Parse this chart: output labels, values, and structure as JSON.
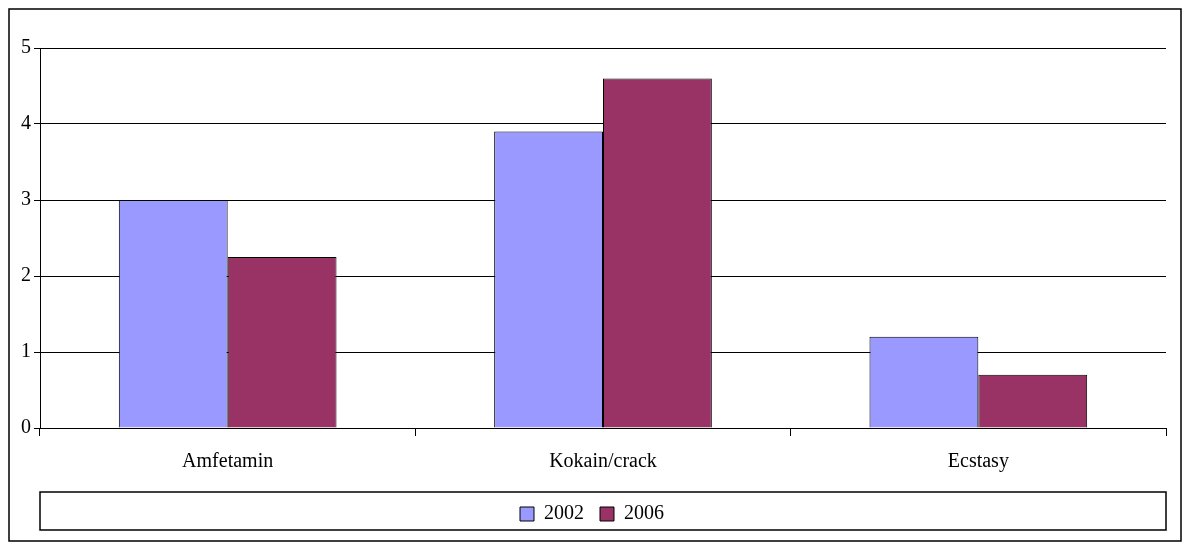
{
  "chart_data": {
    "type": "bar",
    "categories": [
      "Amfetamin",
      "Kokain/crack",
      "Ecstasy"
    ],
    "series": [
      {
        "name": "2002",
        "color": "#9999ff",
        "values": [
          3.0,
          3.9,
          1.2
        ]
      },
      {
        "name": "2006",
        "color": "#993366",
        "values": [
          2.25,
          4.6,
          0.7
        ]
      }
    ],
    "ylim": [
      0,
      5
    ],
    "yticks": [
      0,
      1,
      2,
      3,
      4,
      5
    ],
    "grid": "y",
    "legend": "bottom"
  }
}
